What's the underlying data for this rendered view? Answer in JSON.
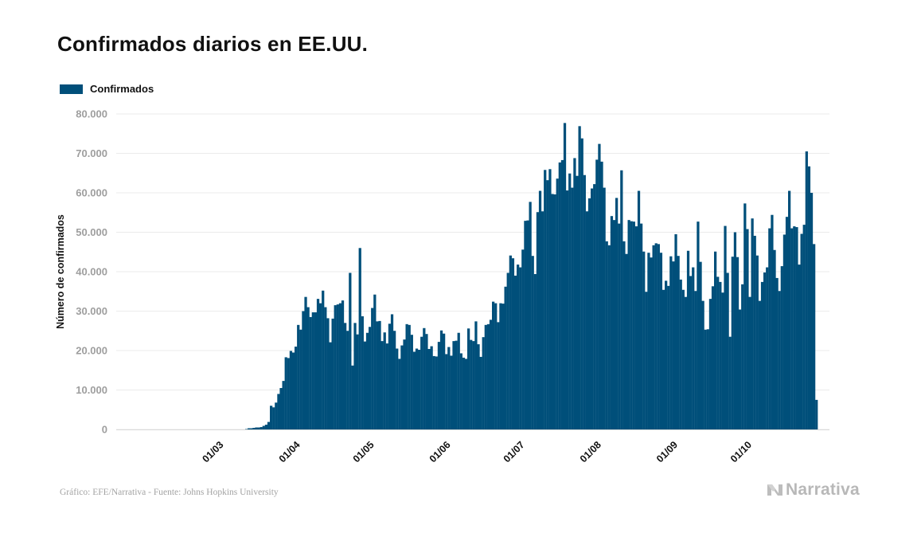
{
  "chart_data": {
    "type": "bar",
    "title": "Confirmados diarios en EE.UU.",
    "legend": {
      "position": "top-left",
      "entries": [
        "Confirmados"
      ]
    },
    "ylabel": "Número de confirmados",
    "xlabel": "",
    "ylim": [
      0,
      80000
    ],
    "yticks": [
      0,
      10000,
      20000,
      30000,
      40000,
      50000,
      60000,
      70000,
      80000
    ],
    "ytick_labels": [
      "0",
      "10.000",
      "20.000",
      "30.000",
      "40.000",
      "50.000",
      "60.000",
      "70.000",
      "80.000"
    ],
    "xticks": [
      "01/03",
      "01/04",
      "01/05",
      "01/06",
      "01/07",
      "01/08",
      "01/09",
      "01/10"
    ],
    "x_start": "2020-01-22",
    "grid": "horizontal",
    "bar_color": "#004f7a",
    "series": [
      {
        "name": "Confirmados",
        "values": [
          0,
          0,
          0,
          0,
          0,
          0,
          0,
          0,
          0,
          0,
          0,
          0,
          0,
          0,
          0,
          0,
          0,
          0,
          0,
          0,
          0,
          0,
          0,
          0,
          0,
          0,
          0,
          0,
          0,
          0,
          0,
          0,
          0,
          0,
          0,
          0,
          0,
          0,
          0,
          0,
          0,
          0,
          0,
          0,
          0,
          0,
          0,
          0,
          0,
          0,
          100,
          300,
          300,
          400,
          500,
          500,
          600,
          900,
          1200,
          1900,
          6000,
          5600,
          6800,
          9000,
          10500,
          12300,
          18300,
          18100,
          19900,
          19500,
          21000,
          26500,
          25300,
          30000,
          33600,
          31000,
          28500,
          29700,
          29700,
          33100,
          32000,
          35200,
          31000,
          28200,
          22100,
          28100,
          31500,
          31700,
          32000,
          32700,
          27000,
          25000,
          39700,
          16200,
          27000,
          24100,
          46000,
          28700,
          22300,
          24500,
          26000,
          30800,
          34200,
          27400,
          27500,
          22400,
          24600,
          21800,
          26800,
          29200,
          25000,
          20500,
          17900,
          21300,
          22800,
          26700,
          26500,
          24000,
          19700,
          20500,
          20200,
          23500,
          25700,
          24200,
          20400,
          21100,
          18600,
          18500,
          22200,
          25100,
          24300,
          19100,
          20900,
          18700,
          22400,
          22500,
          24500,
          19300,
          18200,
          17900,
          25600,
          22700,
          22400,
          27400,
          21600,
          18400,
          23400,
          26500,
          26700,
          27800,
          32400,
          32000,
          27200,
          32000,
          31900,
          36200,
          39700,
          44100,
          43400,
          39000,
          41800,
          41100,
          45600,
          52900,
          53000,
          57700,
          44000,
          39400,
          55100,
          60500,
          55300,
          65800,
          63200,
          66000,
          59700,
          59600,
          63600,
          67700,
          68300,
          77700,
          60600,
          64900,
          61300,
          68800,
          64300,
          76900,
          73800,
          64500,
          55300,
          58600,
          61100,
          62200,
          68400,
          72400,
          67900,
          61300,
          47700,
          46700,
          54100,
          53100,
          58700,
          52200,
          65700,
          47700,
          44500,
          53100,
          52800,
          52700,
          51500,
          60500,
          52200,
          45100,
          34900,
          44800,
          43600,
          46700,
          47200,
          47000,
          44800,
          35400,
          37700,
          36400,
          43900,
          42600,
          49500,
          44000,
          38000,
          35400,
          33600,
          45300,
          38900,
          41100,
          35100,
          52700,
          42500,
          32600,
          25300,
          25400,
          33100,
          36300,
          45100,
          38700,
          37400,
          34700,
          51600,
          39700,
          23500,
          43800,
          50000,
          43700,
          30400,
          36800,
          57300,
          50800,
          33600,
          53500,
          49100,
          44100,
          32600,
          37400,
          39800,
          41100,
          51000,
          54400,
          45500,
          38400,
          35100,
          41400,
          49400,
          53900,
          60500,
          51000,
          51500,
          51300,
          41800,
          49600,
          51900,
          70500,
          66700,
          60000,
          47000,
          7500
        ]
      }
    ]
  },
  "footer": {
    "source": "Gráfico: EFE/Narrativa - Fuente: Johns Hopkins University",
    "logo_text": "Narrativa"
  }
}
